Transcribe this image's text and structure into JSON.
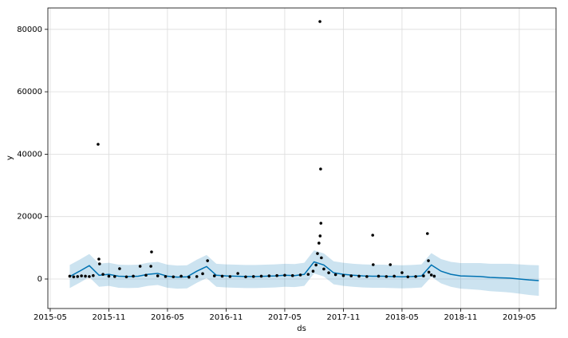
{
  "chart_data": {
    "type": "forecast",
    "xlabel": "ds",
    "ylabel": "y",
    "xlim": [
      3.76,
      55.76
    ],
    "ylim": [
      -9450,
      86850
    ],
    "xticks": [
      {
        "value": 4,
        "label": "2015-05"
      },
      {
        "value": 10,
        "label": "2015-11"
      },
      {
        "value": 16,
        "label": "2016-05"
      },
      {
        "value": 22,
        "label": "2016-11"
      },
      {
        "value": 28,
        "label": "2017-05"
      },
      {
        "value": 34,
        "label": "2017-11"
      },
      {
        "value": 40,
        "label": "2018-05"
      },
      {
        "value": 46,
        "label": "2018-11"
      },
      {
        "value": 52,
        "label": "2019-05"
      }
    ],
    "yticks": [
      0,
      20000,
      40000,
      60000,
      80000
    ],
    "grid": true,
    "point_color": "#000000",
    "line_color": "#0072B2",
    "band_color": "#0072B2",
    "points": {
      "x": [
        6.0,
        6.4,
        6.8,
        7.2,
        7.6,
        8.0,
        8.4,
        8.9,
        8.98,
        9.05,
        9.4,
        10.0,
        10.6,
        11.1,
        11.8,
        12.5,
        13.2,
        13.8,
        14.3,
        14.37,
        15.0,
        15.8,
        16.6,
        17.4,
        18.2,
        19.0,
        19.6,
        20.1,
        20.8,
        21.6,
        22.4,
        23.2,
        24.0,
        24.8,
        25.6,
        26.4,
        27.2,
        28.0,
        28.8,
        29.6,
        30.4,
        30.9,
        31.2,
        31.35,
        31.5,
        31.6,
        31.62,
        31.67,
        31.7,
        31.75,
        32.0,
        32.5,
        33.2,
        34.0,
        34.8,
        35.6,
        36.4,
        37.0,
        37.05,
        37.6,
        38.4,
        38.8,
        39.2,
        40.0,
        40.6,
        41.4,
        42.2,
        42.6,
        42.7,
        42.75,
        43.0,
        43.3
      ],
      "y": [
        900,
        700,
        800,
        1000,
        900,
        800,
        1100,
        43170,
        6390,
        4850,
        1500,
        900,
        800,
        3320,
        700,
        900,
        4090,
        1200,
        4090,
        8680,
        1000,
        800,
        700,
        900,
        600,
        800,
        1700,
        5870,
        1000,
        900,
        800,
        1790,
        700,
        800,
        900,
        1000,
        1100,
        1200,
        1100,
        1300,
        1500,
        2500,
        4500,
        8170,
        11500,
        82500,
        13800,
        35250,
        17880,
        6800,
        3200,
        2000,
        1400,
        1100,
        1000,
        900,
        800,
        14050,
        4600,
        900,
        800,
        4600,
        900,
        2040,
        700,
        800,
        1000,
        14560,
        5870,
        2200,
        1300,
        900
      ]
    },
    "forecast": {
      "x": [
        6,
        7,
        8,
        9,
        10,
        11,
        12,
        13,
        14,
        15,
        16,
        17,
        18,
        19,
        20,
        21,
        22,
        23,
        24,
        25,
        26,
        27,
        28,
        29,
        30,
        31,
        32,
        33,
        34,
        35,
        36,
        37,
        38,
        39,
        40,
        41,
        42,
        43,
        44,
        45,
        46,
        47,
        48,
        49,
        50,
        51,
        52,
        53,
        54
      ],
      "yhat": [
        800,
        2500,
        4300,
        1200,
        1500,
        900,
        800,
        900,
        1500,
        1800,
        900,
        600,
        700,
        2500,
        4000,
        1200,
        1000,
        900,
        800,
        800,
        900,
        1000,
        1200,
        1100,
        1500,
        5500,
        4500,
        2000,
        1500,
        1200,
        1000,
        900,
        900,
        800,
        700,
        800,
        1000,
        4500,
        2500,
        1500,
        1000,
        900,
        800,
        500,
        400,
        300,
        0,
        -300,
        -500
      ],
      "upper": [
        4500,
        6200,
        8000,
        4900,
        5200,
        4600,
        4500,
        4600,
        5200,
        5500,
        4600,
        4300,
        4400,
        6200,
        7700,
        4900,
        4700,
        4600,
        4500,
        4500,
        4600,
        4700,
        4900,
        4800,
        5200,
        9200,
        8200,
        5700,
        5200,
        4900,
        4700,
        4600,
        4600,
        4500,
        4400,
        4500,
        4700,
        8300,
        6400,
        5500,
        5100,
        5100,
        5100,
        4900,
        4900,
        4900,
        4700,
        4500,
        4400
      ],
      "lower": [
        -2900,
        -1200,
        600,
        -2500,
        -2200,
        -2800,
        -2900,
        -2800,
        -2200,
        -1900,
        -2800,
        -3100,
        -3000,
        -1200,
        300,
        -2500,
        -2700,
        -2800,
        -2900,
        -2900,
        -2800,
        -2700,
        -2500,
        -2600,
        -2200,
        1800,
        800,
        -1700,
        -2200,
        -2500,
        -2700,
        -2800,
        -2800,
        -2900,
        -3000,
        -2900,
        -2700,
        700,
        -1400,
        -2500,
        -3100,
        -3300,
        -3500,
        -3900,
        -4100,
        -4300,
        -4700,
        -5100,
        -5400
      ]
    }
  }
}
